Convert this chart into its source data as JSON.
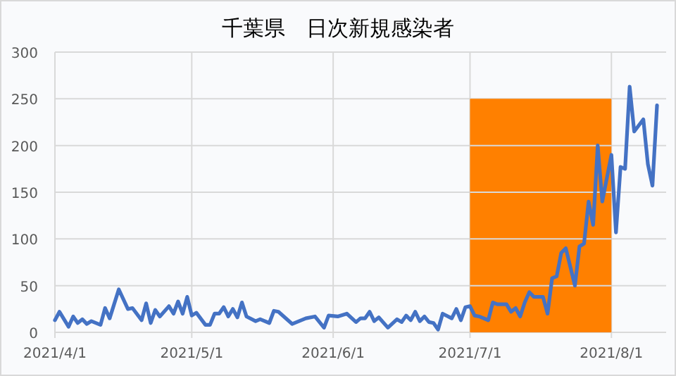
{
  "chart_data": {
    "type": "line",
    "title": "千葉県　日次新規感染者",
    "xlim": [
      "2021-04-01",
      "2021-08-13"
    ],
    "ylim": [
      0,
      300
    ],
    "yticks": [
      0,
      50,
      100,
      150,
      200,
      250,
      300
    ],
    "xticks": [
      {
        "value": "2021-04-01",
        "label": "2021/4/1"
      },
      {
        "value": "2021-05-01",
        "label": "2021/5/1"
      },
      {
        "value": "2021-06-01",
        "label": "2021/6/1"
      },
      {
        "value": "2021-07-01",
        "label": "2021/7/1"
      },
      {
        "value": "2021-08-01",
        "label": "2021/8/1"
      }
    ],
    "grid": true,
    "marker": "none",
    "line_style": "solid",
    "series": [
      {
        "type": "area",
        "color": "#ff8000",
        "x": [
          "2021-07-01",
          "2021-08-01"
        ],
        "values": [
          250,
          250
        ]
      },
      {
        "color": "#4472c4",
        "x": [
          "2021-04-01",
          "2021-04-02",
          "2021-04-04",
          "2021-04-05",
          "2021-04-06",
          "2021-04-07",
          "2021-04-08",
          "2021-04-09",
          "2021-04-11",
          "2021-04-12",
          "2021-04-13",
          "2021-04-15",
          "2021-04-17",
          "2021-04-18",
          "2021-04-20",
          "2021-04-21",
          "2021-04-22",
          "2021-04-23",
          "2021-04-24",
          "2021-04-26",
          "2021-04-27",
          "2021-04-28",
          "2021-04-29",
          "2021-04-30",
          "2021-05-01",
          "2021-05-02",
          "2021-05-04",
          "2021-05-05",
          "2021-05-06",
          "2021-05-07",
          "2021-05-08",
          "2021-05-09",
          "2021-05-10",
          "2021-05-11",
          "2021-05-12",
          "2021-05-13",
          "2021-05-15",
          "2021-05-16",
          "2021-05-18",
          "2021-05-19",
          "2021-05-20",
          "2021-05-23",
          "2021-05-26",
          "2021-05-28",
          "2021-05-30",
          "2021-05-31",
          "2021-06-02",
          "2021-06-04",
          "2021-06-06",
          "2021-06-07",
          "2021-06-08",
          "2021-06-09",
          "2021-06-10",
          "2021-06-11",
          "2021-06-13",
          "2021-06-15",
          "2021-06-16",
          "2021-06-17",
          "2021-06-18",
          "2021-06-19",
          "2021-06-20",
          "2021-06-21",
          "2021-06-22",
          "2021-06-23",
          "2021-06-24",
          "2021-06-25",
          "2021-06-27",
          "2021-06-28",
          "2021-06-29",
          "2021-06-30",
          "2021-07-01",
          "2021-07-02",
          "2021-07-03",
          "2021-07-05",
          "2021-07-06",
          "2021-07-07",
          "2021-07-09",
          "2021-07-10",
          "2021-07-11",
          "2021-07-12",
          "2021-07-13",
          "2021-07-14",
          "2021-07-15",
          "2021-07-17",
          "2021-07-18",
          "2021-07-19",
          "2021-07-20",
          "2021-07-21",
          "2021-07-22",
          "2021-07-24",
          "2021-07-25",
          "2021-07-26",
          "2021-07-27",
          "2021-07-28",
          "2021-07-29",
          "2021-07-30",
          "2021-08-01",
          "2021-08-02",
          "2021-08-03",
          "2021-08-04",
          "2021-08-05",
          "2021-08-06",
          "2021-08-08",
          "2021-08-09",
          "2021-08-10",
          "2021-08-11"
        ],
        "values": [
          13,
          22,
          6,
          17,
          10,
          14,
          9,
          12,
          8,
          26,
          15,
          46,
          25,
          26,
          13,
          31,
          10,
          24,
          17,
          28,
          20,
          33,
          20,
          38,
          18,
          21,
          8,
          8,
          20,
          20,
          27,
          17,
          25,
          16,
          32,
          17,
          12,
          14,
          10,
          23,
          22,
          9,
          15,
          17,
          5,
          18,
          17,
          20,
          11,
          15,
          15,
          22,
          12,
          16,
          5,
          14,
          11,
          18,
          13,
          22,
          12,
          17,
          11,
          10,
          3,
          20,
          15,
          25,
          13,
          27,
          28,
          18,
          17,
          13,
          32,
          30,
          30,
          22,
          26,
          17,
          32,
          43,
          38,
          38,
          20,
          58,
          60,
          85,
          90,
          50,
          92,
          95,
          140,
          115,
          200,
          140,
          190,
          107,
          177,
          175,
          263,
          215,
          228,
          180,
          157,
          243
        ]
      }
    ]
  }
}
